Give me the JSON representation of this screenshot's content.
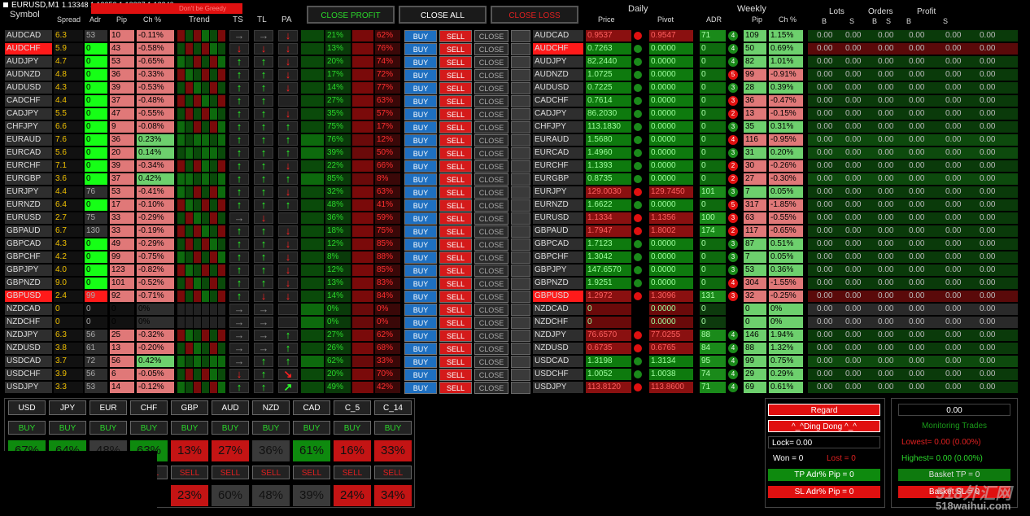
{
  "header": {
    "chart_title": "EURUSD,M1",
    "prices": "1.13348 1.13352 1.13337 1.13340",
    "banner": "Don't be Greedy",
    "symbol_hdr": "Symbol",
    "spread_hdr": "Spread",
    "adr_hdr": "Adr",
    "pip_hdr": "Pip",
    "chpct_hdr": "Ch %",
    "trend_hdr": "Trend",
    "ts_hdr": "TS",
    "tl_hdr": "TL",
    "pa_hdr": "PA",
    "close_profit": "CLOSE PROFIT",
    "close_all": "CLOSE ALL",
    "close_loss": "CLOSE LOSS",
    "daily_hdr": "Daily",
    "price_hdr": "Price",
    "pivot_hdr": "Pivot",
    "weekly_hdr": "Weekly",
    "w_adr_hdr": "ADR",
    "w_pip_hdr": "Pip",
    "w_ch_hdr": "Ch %",
    "lots_hdr": "Lots",
    "orders_hdr": "Orders",
    "profit_hdr": "Profit",
    "b_hdr": "B",
    "s_hdr": "S"
  },
  "labels": {
    "buy": "BUY",
    "sell": "SELL",
    "close": "CLOSE",
    "zero": "0.00"
  },
  "colors": {
    "red": "#ff1a1a",
    "green": "#16ff16",
    "pink": "#e07878",
    "lightgreen": "#6dd06d",
    "darkgreen": "#0d5a0d",
    "darkred": "#6a0a0a",
    "gray": "#3a3a3a"
  },
  "rows": [
    {
      "sym": "AUDCAD",
      "spread": "6.3",
      "adr": "53",
      "pip": "10",
      "ch": "-0.11%",
      "pct1": "21%",
      "pct2": "62%",
      "price": "0.9537",
      "pivot": "0.9547",
      "w_adr": "71",
      "w_n": "4",
      "w_pip": "109",
      "w_ch": "1.15%",
      "ts": "→",
      "tl": "→",
      "pa": "↓"
    },
    {
      "sym": "AUDCHF",
      "spread": "5.9",
      "adr": "0",
      "pip": "43",
      "ch": "-0.58%",
      "pct1": "13%",
      "pct2": "76%",
      "price": "0.7263",
      "pivot": "0.0000",
      "w_adr": "0",
      "w_n": "4",
      "w_pip": "50",
      "w_ch": "0.69%",
      "ts": "↓",
      "tl": "↓",
      "pa": "↓"
    },
    {
      "sym": "AUDJPY",
      "spread": "4.7",
      "adr": "0",
      "pip": "53",
      "ch": "-0.65%",
      "pct1": "20%",
      "pct2": "74%",
      "price": "82.2440",
      "pivot": "0.0000",
      "w_adr": "0",
      "w_n": "4",
      "w_pip": "82",
      "w_ch": "1.01%",
      "ts": "↑",
      "tl": "↑",
      "pa": "↓"
    },
    {
      "sym": "AUDNZD",
      "spread": "4.8",
      "adr": "0",
      "pip": "36",
      "ch": "-0.33%",
      "pct1": "17%",
      "pct2": "72%",
      "price": "1.0725",
      "pivot": "0.0000",
      "w_adr": "0",
      "w_n": "5",
      "w_pip": "99",
      "w_ch": "-0.91%",
      "ts": "↑",
      "tl": "↑",
      "pa": "↓"
    },
    {
      "sym": "AUDUSD",
      "spread": "4.3",
      "adr": "0",
      "pip": "39",
      "ch": "-0.53%",
      "pct1": "14%",
      "pct2": "77%",
      "price": "0.7225",
      "pivot": "0.0000",
      "w_adr": "0",
      "w_n": "3",
      "w_pip": "28",
      "w_ch": "0.39%",
      "ts": "↑",
      "tl": "↑",
      "pa": "↓"
    },
    {
      "sym": "CADCHF",
      "spread": "4.4",
      "adr": "0",
      "pip": "37",
      "ch": "-0.48%",
      "pct1": "27%",
      "pct2": "63%",
      "price": "0.7614",
      "pivot": "0.0000",
      "w_adr": "0",
      "w_n": "3",
      "w_pip": "36",
      "w_ch": "-0.47%",
      "ts": "↑",
      "tl": "↑",
      "pa": ""
    },
    {
      "sym": "CADJPY",
      "spread": "5.5",
      "adr": "0",
      "pip": "47",
      "ch": "-0.55%",
      "pct1": "35%",
      "pct2": "57%",
      "price": "86.2030",
      "pivot": "0.0000",
      "w_adr": "0",
      "w_n": "2",
      "w_pip": "13",
      "w_ch": "-0.15%",
      "ts": "↑",
      "tl": "↑",
      "pa": "↓"
    },
    {
      "sym": "CHFJPY",
      "spread": "6.6",
      "adr": "0",
      "pip": "9",
      "ch": "-0.08%",
      "pct1": "75%",
      "pct2": "17%",
      "price": "113.1830",
      "pivot": "0.0000",
      "w_adr": "0",
      "w_n": "3",
      "w_pip": "35",
      "w_ch": "0.31%",
      "ts": "↑",
      "tl": "↑",
      "pa": "↑"
    },
    {
      "sym": "EURAUD",
      "spread": "7.6",
      "adr": "0",
      "pip": "36",
      "ch": "0.23%",
      "pct1": "76%",
      "pct2": "12%",
      "price": "1.5680",
      "pivot": "0.0000",
      "w_adr": "0",
      "w_n": "4",
      "w_pip": "116",
      "w_ch": "-0.95%",
      "ts": "↑",
      "tl": "↑",
      "pa": "↑"
    },
    {
      "sym": "EURCAD",
      "spread": "5.6",
      "adr": "0",
      "pip": "20",
      "ch": "0.14%",
      "pct1": "39%",
      "pct2": "50%",
      "price": "1.4960",
      "pivot": "0.0000",
      "w_adr": "0",
      "w_n": "3",
      "w_pip": "31",
      "w_ch": "0.20%",
      "ts": "↑",
      "tl": "↑",
      "pa": "↑"
    },
    {
      "sym": "EURCHF",
      "spread": "7.1",
      "adr": "0",
      "pip": "39",
      "ch": "-0.34%",
      "pct1": "22%",
      "pct2": "66%",
      "price": "1.1393",
      "pivot": "0.0000",
      "w_adr": "0",
      "w_n": "2",
      "w_pip": "30",
      "w_ch": "-0.26%",
      "ts": "↑",
      "tl": "↑",
      "pa": "↓"
    },
    {
      "sym": "EURGBP",
      "spread": "3.6",
      "adr": "0",
      "pip": "37",
      "ch": "0.42%",
      "pct1": "85%",
      "pct2": "8%",
      "price": "0.8735",
      "pivot": "0.0000",
      "w_adr": "0",
      "w_n": "2",
      "w_pip": "27",
      "w_ch": "-0.30%",
      "ts": "↑",
      "tl": "↑",
      "pa": "↑"
    },
    {
      "sym": "EURJPY",
      "spread": "4.4",
      "adr": "76",
      "pip": "53",
      "ch": "-0.41%",
      "pct1": "32%",
      "pct2": "63%",
      "price": "129.0030",
      "pivot": "129.7450",
      "w_adr": "101",
      "w_n": "3",
      "w_pip": "7",
      "w_ch": "0.05%",
      "ts": "↑",
      "tl": "↑",
      "pa": "↓"
    },
    {
      "sym": "EURNZD",
      "spread": "6.4",
      "adr": "0",
      "pip": "17",
      "ch": "-0.10%",
      "pct1": "48%",
      "pct2": "41%",
      "price": "1.6622",
      "pivot": "0.0000",
      "w_adr": "0",
      "w_n": "5",
      "w_pip": "317",
      "w_ch": "-1.85%",
      "ts": "↑",
      "tl": "↑",
      "pa": "↑"
    },
    {
      "sym": "EURUSD",
      "spread": "2.7",
      "adr": "75",
      "pip": "33",
      "ch": "-0.29%",
      "pct1": "36%",
      "pct2": "59%",
      "price": "1.1334",
      "pivot": "1.1356",
      "w_adr": "100",
      "w_n": "3",
      "w_pip": "63",
      "w_ch": "-0.55%",
      "ts": "→",
      "tl": "↓",
      "pa": ""
    },
    {
      "sym": "GBPAUD",
      "spread": "6.7",
      "adr": "130",
      "pip": "33",
      "ch": "-0.19%",
      "pct1": "18%",
      "pct2": "75%",
      "price": "1.7947",
      "pivot": "1.8002",
      "w_adr": "174",
      "w_n": "2",
      "w_pip": "117",
      "w_ch": "-0.65%",
      "ts": "↑",
      "tl": "↑",
      "pa": "↓"
    },
    {
      "sym": "GBPCAD",
      "spread": "4.3",
      "adr": "0",
      "pip": "49",
      "ch": "-0.29%",
      "pct1": "12%",
      "pct2": "85%",
      "price": "1.7123",
      "pivot": "0.0000",
      "w_adr": "0",
      "w_n": "3",
      "w_pip": "87",
      "w_ch": "0.51%",
      "ts": "↑",
      "tl": "↑",
      "pa": "↓"
    },
    {
      "sym": "GBPCHF",
      "spread": "4.2",
      "adr": "0",
      "pip": "99",
      "ch": "-0.75%",
      "pct1": "8%",
      "pct2": "88%",
      "price": "1.3042",
      "pivot": "0.0000",
      "w_adr": "0",
      "w_n": "3",
      "w_pip": "7",
      "w_ch": "0.05%",
      "ts": "↑",
      "tl": "↑",
      "pa": "↓"
    },
    {
      "sym": "GBPJPY",
      "spread": "4.0",
      "adr": "0",
      "pip": "123",
      "ch": "-0.82%",
      "pct1": "12%",
      "pct2": "85%",
      "price": "147.6570",
      "pivot": "0.0000",
      "w_adr": "0",
      "w_n": "3",
      "w_pip": "53",
      "w_ch": "0.36%",
      "ts": "↑",
      "tl": "↑",
      "pa": "↓"
    },
    {
      "sym": "GBPNZD",
      "spread": "9.0",
      "adr": "0",
      "pip": "101",
      "ch": "-0.52%",
      "pct1": "13%",
      "pct2": "83%",
      "price": "1.9251",
      "pivot": "0.0000",
      "w_adr": "0",
      "w_n": "4",
      "w_pip": "304",
      "w_ch": "-1.55%",
      "ts": "↑",
      "tl": "↑",
      "pa": "↓"
    },
    {
      "sym": "GBPUSD",
      "spread": "2.4",
      "adr": "99",
      "pip": "92",
      "ch": "-0.71%",
      "pct1": "14%",
      "pct2": "84%",
      "price": "1.2972",
      "pivot": "1.3096",
      "w_adr": "131",
      "w_n": "3",
      "w_pip": "32",
      "w_ch": "-0.25%",
      "ts": "↑",
      "tl": "↓",
      "pa": "↓"
    },
    {
      "sym": "NZDCAD",
      "spread": "0",
      "adr": "0",
      "pip": "0",
      "ch": "0%",
      "pct1": "0%",
      "pct2": "0%",
      "price": "0",
      "pivot": "0.0000",
      "w_adr": "0",
      "w_n": "",
      "w_pip": "0",
      "w_ch": "0%",
      "ts": "→",
      "tl": "→",
      "pa": ""
    },
    {
      "sym": "NZDCHF",
      "spread": "0",
      "adr": "0",
      "pip": "0",
      "ch": "0%",
      "pct1": "0%",
      "pct2": "0%",
      "price": "0",
      "pivot": "0.0000",
      "w_adr": "0",
      "w_n": "",
      "w_pip": "0",
      "w_ch": "0%",
      "ts": "→",
      "tl": "→",
      "pa": ""
    },
    {
      "sym": "NZDJPY",
      "spread": "6.3",
      "adr": "56",
      "pip": "25",
      "ch": "-0.32%",
      "pct1": "27%",
      "pct2": "62%",
      "price": "76.6570",
      "pivot": "77.0255",
      "w_adr": "88",
      "w_n": "4",
      "w_pip": "146",
      "w_ch": "1.94%",
      "ts": "→",
      "tl": "→",
      "pa": "↑"
    },
    {
      "sym": "NZDUSD",
      "spread": "3.8",
      "adr": "61",
      "pip": "13",
      "ch": "-0.20%",
      "pct1": "26%",
      "pct2": "68%",
      "price": "0.6735",
      "pivot": "0.6765",
      "w_adr": "84",
      "w_n": "4",
      "w_pip": "88",
      "w_ch": "1.32%",
      "ts": "→",
      "tl": "→",
      "pa": "↑"
    },
    {
      "sym": "USDCAD",
      "spread": "3.7",
      "adr": "72",
      "pip": "56",
      "ch": "0.42%",
      "pct1": "62%",
      "pct2": "33%",
      "price": "1.3198",
      "pivot": "1.3134",
      "w_adr": "95",
      "w_n": "4",
      "w_pip": "99",
      "w_ch": "0.75%",
      "ts": "→",
      "tl": "↑",
      "pa": "↑"
    },
    {
      "sym": "USDCHF",
      "spread": "3.9",
      "adr": "56",
      "pip": "6",
      "ch": "-0.05%",
      "pct1": "20%",
      "pct2": "70%",
      "price": "1.0052",
      "pivot": "1.0038",
      "w_adr": "74",
      "w_n": "4",
      "w_pip": "29",
      "w_ch": "0.29%",
      "ts": "↓",
      "tl": "↑",
      "pa": "↘"
    },
    {
      "sym": "USDJPY",
      "spread": "3.3",
      "adr": "53",
      "pip": "14",
      "ch": "-0.12%",
      "pct1": "49%",
      "pct2": "42%",
      "price": "113.8120",
      "pivot": "113.8600",
      "w_adr": "71",
      "w_n": "4",
      "w_pip": "69",
      "w_ch": "0.61%",
      "ts": "↑",
      "tl": "↑",
      "pa": "↗"
    }
  ],
  "currencies": {
    "names": [
      "USD",
      "JPY",
      "EUR",
      "CHF",
      "GBP",
      "AUD",
      "NZD",
      "CAD",
      "C_5",
      "C_14"
    ],
    "buy_pct": [
      "67%",
      "64%",
      "48%",
      "63%",
      "13%",
      "27%",
      "36%",
      "61%",
      "16%",
      "33%"
    ],
    "sell_pct": [
      "",
      "",
      "",
      "",
      "23%",
      "60%",
      "48%",
      "39%",
      "24%",
      "34%"
    ]
  },
  "right_panel": {
    "regard": "Regard",
    "ding_dong": "^_^Ding Dong ^_^",
    "lock": "Lock= 0.00",
    "won": "Won = 0",
    "lost": "Lost = 0",
    "tp": "TP Adr% Pip = 0",
    "sl": "SL Adr% Pip = 0",
    "total": "0.00",
    "monitoring": "Monitoring Trades",
    "lowest": "Lowest= 0.00 (0.00%)",
    "highest": "Highest= 0.00 (0.00%)",
    "basket_tp": "Basket TP = 0",
    "basket_sl": "Basket SL = 0"
  },
  "watermark": {
    "logo": "518外汇网",
    "url": "518waihui.com"
  }
}
